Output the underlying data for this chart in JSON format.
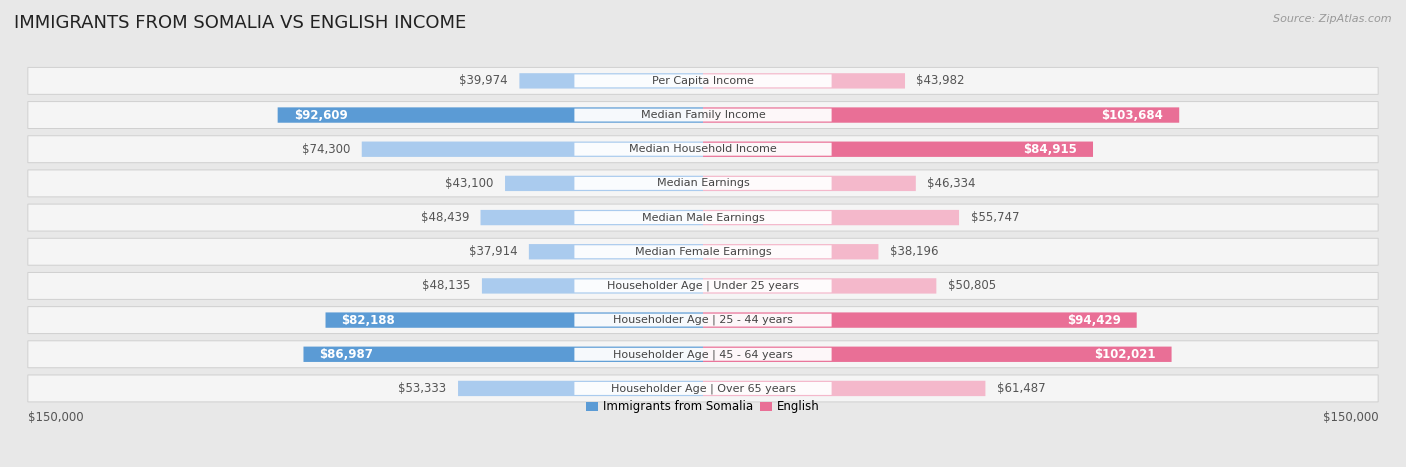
{
  "title": "IMMIGRANTS FROM SOMALIA VS ENGLISH INCOME",
  "source": "Source: ZipAtlas.com",
  "categories": [
    "Per Capita Income",
    "Median Family Income",
    "Median Household Income",
    "Median Earnings",
    "Median Male Earnings",
    "Median Female Earnings",
    "Householder Age | Under 25 years",
    "Householder Age | 25 - 44 years",
    "Householder Age | 45 - 64 years",
    "Householder Age | Over 65 years"
  ],
  "somalia_values": [
    39974,
    92609,
    74300,
    43100,
    48439,
    37914,
    48135,
    82188,
    86987,
    53333
  ],
  "english_values": [
    43982,
    103684,
    84915,
    46334,
    55747,
    38196,
    50805,
    94429,
    102021,
    61487
  ],
  "somalia_labels": [
    "$39,974",
    "$92,609",
    "$74,300",
    "$43,100",
    "$48,439",
    "$37,914",
    "$48,135",
    "$82,188",
    "$86,987",
    "$53,333"
  ],
  "english_labels": [
    "$43,982",
    "$103,684",
    "$84,915",
    "$46,334",
    "$55,747",
    "$38,196",
    "$50,805",
    "$94,429",
    "$102,021",
    "$61,487"
  ],
  "somalia_large": [
    false,
    true,
    false,
    false,
    false,
    false,
    false,
    true,
    true,
    false
  ],
  "english_large": [
    false,
    true,
    true,
    false,
    false,
    false,
    false,
    true,
    true,
    false
  ],
  "somalia_color_light": "#aacbee",
  "somalia_color_dark": "#5b9bd5",
  "english_color_light": "#f4b8cb",
  "english_color_dark": "#e96f96",
  "max_value": 150000,
  "axis_label": "$150,000",
  "background_color": "#e8e8e8",
  "row_bg_color": "#f5f5f5",
  "row_border_color": "#d0d0d0",
  "title_fontsize": 13,
  "label_fontsize": 8.5,
  "category_fontsize": 8.0,
  "source_fontsize": 8.0
}
